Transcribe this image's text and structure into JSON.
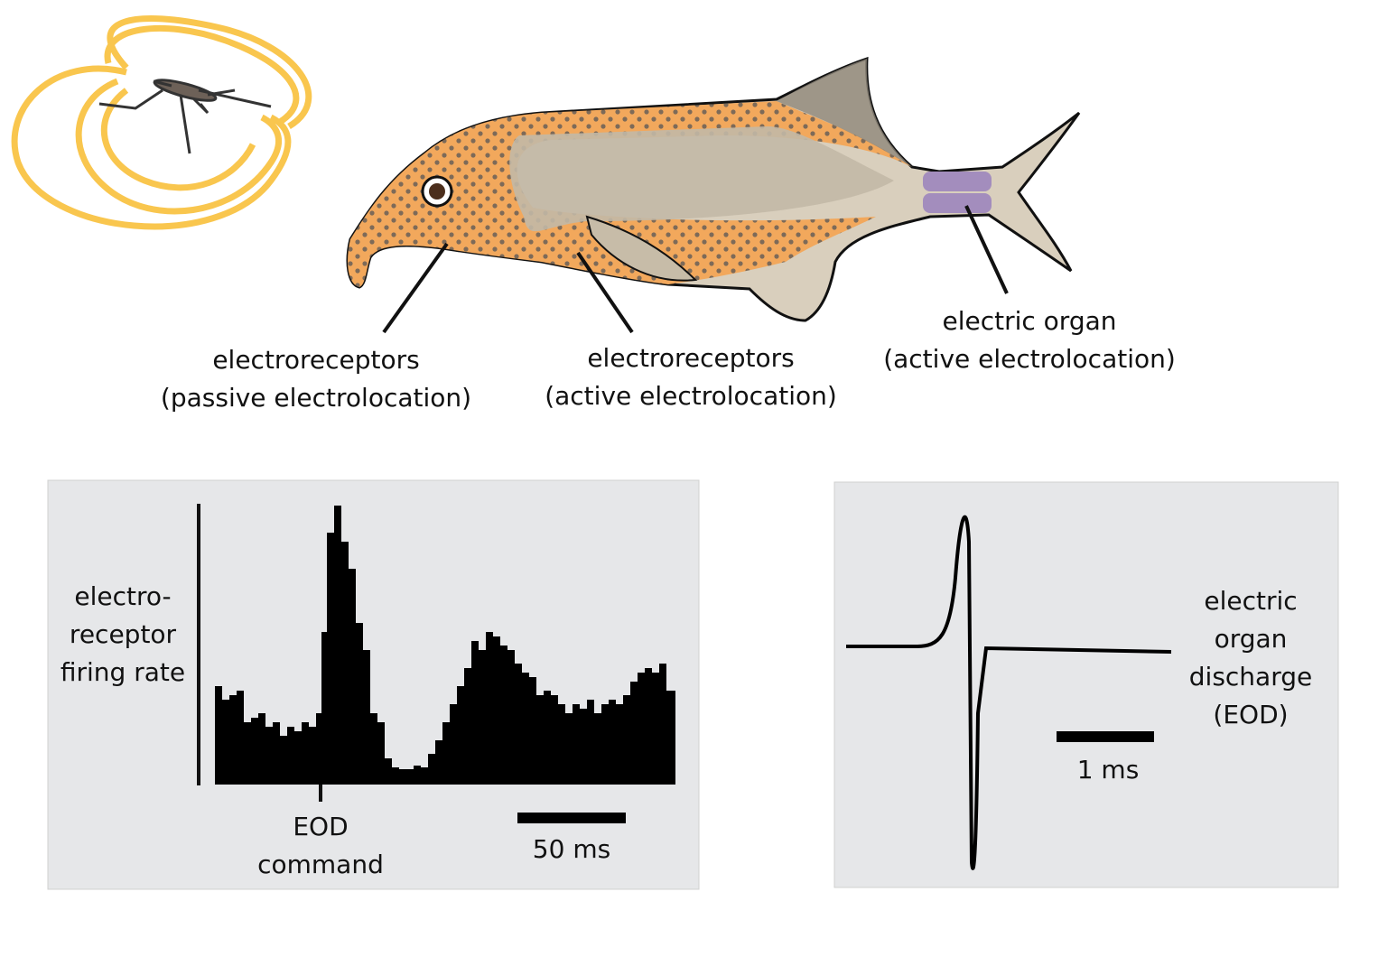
{
  "labels": {
    "passive": [
      "electroreceptors",
      "(passive electrolocation)"
    ],
    "active": [
      "electroreceptors",
      "(active electrolocation)"
    ],
    "organ": [
      "electric organ",
      "(active electrolocation)"
    ]
  },
  "histogram_panel": {
    "y_label": [
      "electro-",
      "receptor",
      "firing rate"
    ],
    "marker_label": [
      "EOD",
      "command"
    ],
    "scale_bar": "50 ms"
  },
  "eod_panel": {
    "label": [
      "electric",
      "organ",
      "discharge",
      "(EOD)"
    ],
    "scale_bar": "1 ms"
  }
}
